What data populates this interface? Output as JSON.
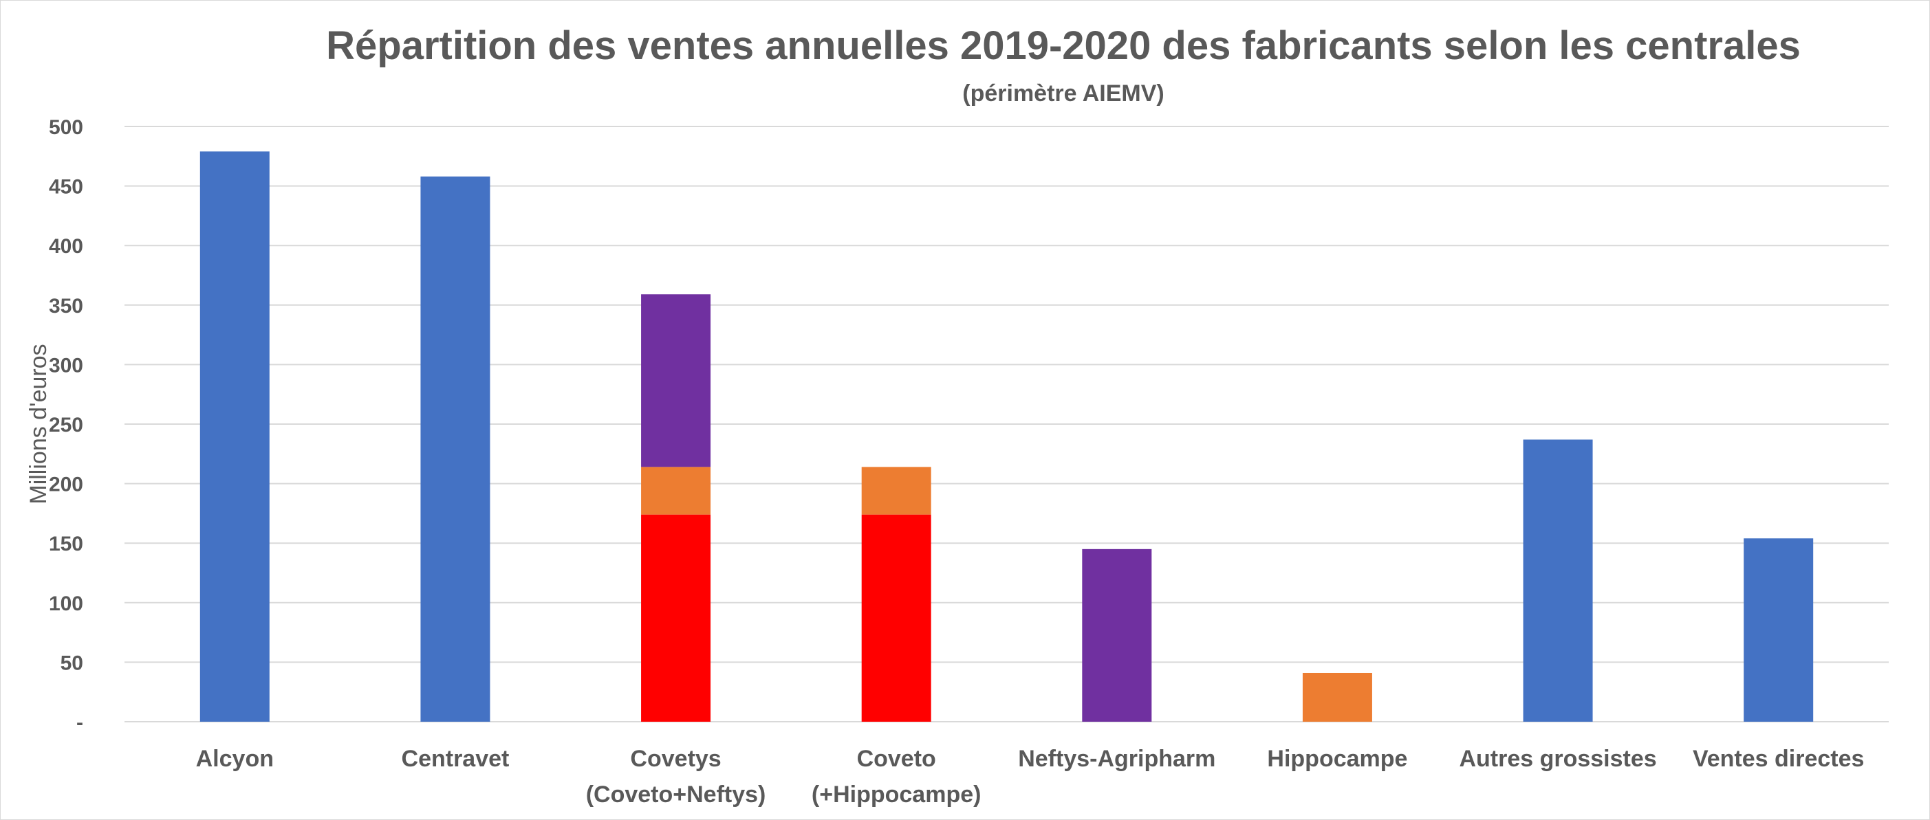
{
  "chart_data": {
    "type": "bar",
    "stacked": true,
    "title": "Répartition des ventes annuelles 2019-2020 des fabricants selon les centrales",
    "subtitle": "(périmètre AIEMV)",
    "xlabel": "",
    "ylabel": "Millions d'euros",
    "ylim": [
      0,
      500
    ],
    "yticks": [
      {
        "value": 0,
        "label": "-"
      },
      {
        "value": 50,
        "label": "50"
      },
      {
        "value": 100,
        "label": "100"
      },
      {
        "value": 150,
        "label": "150"
      },
      {
        "value": 200,
        "label": "200"
      },
      {
        "value": 250,
        "label": "250"
      },
      {
        "value": 300,
        "label": "300"
      },
      {
        "value": 350,
        "label": "350"
      },
      {
        "value": 400,
        "label": "400"
      },
      {
        "value": 450,
        "label": "450"
      },
      {
        "value": 500,
        "label": "500"
      }
    ],
    "grid": true,
    "legend": "none",
    "categories": [
      [
        "Alcyon"
      ],
      [
        "Centravet"
      ],
      [
        "Covetys",
        "(Coveto+Neftys)"
      ],
      [
        "Coveto",
        "(+Hippocampe)"
      ],
      [
        "Neftys-Agripharm"
      ],
      [
        "Hippocampe"
      ],
      [
        "Autres grossistes"
      ],
      [
        "Ventes directes"
      ]
    ],
    "series": [
      {
        "color": "#4472c4",
        "values": [
          479,
          458,
          0,
          0,
          0,
          0,
          237,
          154
        ]
      },
      {
        "color": "#ff0000",
        "values": [
          0,
          0,
          174,
          174,
          0,
          0,
          0,
          0
        ]
      },
      {
        "color": "#ed7d31",
        "values": [
          0,
          0,
          40,
          40,
          0,
          41,
          0,
          0
        ]
      },
      {
        "color": "#7030a0",
        "values": [
          0,
          0,
          145,
          0,
          145,
          0,
          0,
          0
        ]
      }
    ]
  }
}
